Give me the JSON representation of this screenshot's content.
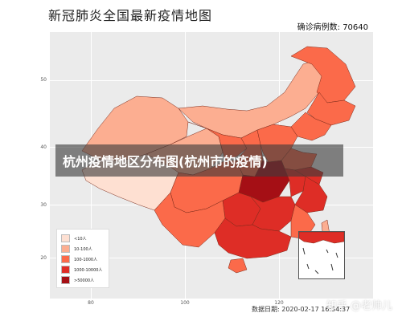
{
  "title": "新冠肺炎全国最新疫情地图",
  "confirmed_text": "确诊病例数: 70640",
  "banner_text": "杭州疫情地区分布图(杭州市的疫情)",
  "date_text": "数据日期: 2020-02-17 16:54:37",
  "watermark_text": "知乎 @老帅儿",
  "axes": {
    "y_ticks": [
      "50",
      "40",
      "30",
      "20"
    ],
    "x_ticks": [
      "80",
      "100",
      "120"
    ]
  },
  "legend": [
    {
      "label": "<10人",
      "color": "#fee0d2"
    },
    {
      "label": "10-100人",
      "color": "#fcae91"
    },
    {
      "label": "100-1000人",
      "color": "#fb6a4a"
    },
    {
      "label": "1000-10000人",
      "color": "#de2d26"
    },
    {
      "label": ">50000人",
      "color": "#a50f15"
    }
  ],
  "colors": {
    "panel_bg": "#ebebeb",
    "border": "#7a2a1a"
  }
}
